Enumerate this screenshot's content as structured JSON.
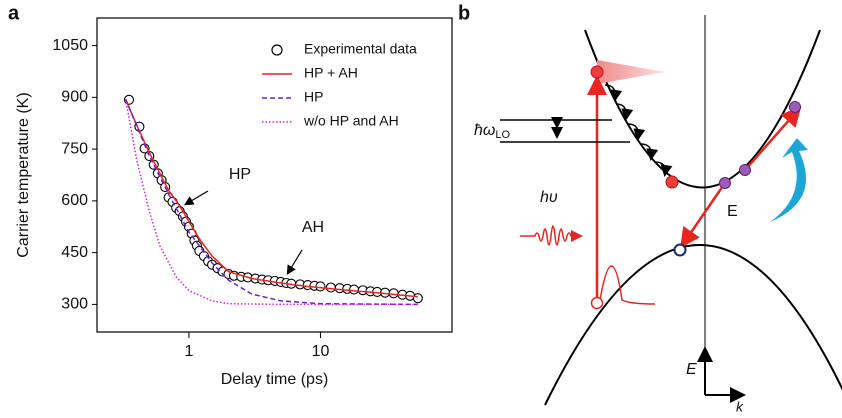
{
  "chart_data": {
    "type": "line",
    "panel_label": "a",
    "x_label": "Delay time (ps)",
    "y_label": "Carrier temperature (K)",
    "xscale": "log",
    "xlim": [
      0.2,
      100
    ],
    "ylim": [
      220,
      1130
    ],
    "xticks": [
      1,
      10
    ],
    "yticks": [
      300,
      450,
      600,
      750,
      900,
      1050
    ],
    "legend": "upper right",
    "series": [
      {
        "name": "Experimental data",
        "color": "#000000",
        "style": "markers",
        "x": [
          0.35,
          0.42,
          0.46,
          0.5,
          0.54,
          0.58,
          0.62,
          0.66,
          0.7,
          0.75,
          0.8,
          0.85,
          0.9,
          0.95,
          1.0,
          1.05,
          1.1,
          1.15,
          1.2,
          1.3,
          1.4,
          1.5,
          1.65,
          1.8,
          2.0,
          2.2,
          2.5,
          2.8,
          3.2,
          3.6,
          4.0,
          4.5,
          5.0,
          5.5,
          6.0,
          7.0,
          8.0,
          9.0,
          10,
          12,
          14,
          16,
          18,
          21,
          24,
          27,
          31,
          36,
          42,
          48,
          55
        ],
        "values": [
          893,
          815,
          752,
          730,
          705,
          680,
          660,
          640,
          610,
          597,
          580,
          570,
          555,
          540,
          525,
          505,
          485,
          470,
          455,
          440,
          425,
          415,
          405,
          395,
          388,
          383,
          380,
          378,
          375,
          372,
          370,
          368,
          365,
          362,
          360,
          358,
          356,
          354,
          352,
          349,
          347,
          345,
          343,
          341,
          338,
          336,
          334,
          332,
          328,
          325,
          318
        ]
      },
      {
        "name": "HP + AH",
        "color": "#e8251f",
        "style": "solid",
        "x": [
          0.33,
          0.4,
          0.5,
          0.6,
          0.7,
          0.8,
          0.9,
          1.0,
          1.2,
          1.5,
          2,
          3,
          5,
          8,
          15,
          30,
          55
        ],
        "values": [
          895,
          820,
          740,
          680,
          630,
          600,
          570,
          540,
          490,
          440,
          395,
          375,
          362,
          352,
          342,
          332,
          322
        ]
      },
      {
        "name": "HP",
        "color": "#6a1fd6",
        "style": "dashed",
        "x": [
          0.33,
          0.5,
          0.7,
          1,
          1.5,
          2,
          3,
          5,
          10,
          55
        ],
        "values": [
          895,
          730,
          620,
          510,
          420,
          370,
          330,
          310,
          302,
          300
        ]
      },
      {
        "name": "w/o HP and AH",
        "color": "#d41ee0",
        "style": "dotted",
        "x": [
          0.33,
          0.4,
          0.5,
          0.6,
          0.8,
          1,
          1.5,
          2,
          5,
          55
        ],
        "values": [
          895,
          720,
          570,
          470,
          380,
          340,
          310,
          302,
          300,
          300
        ]
      }
    ],
    "annotations": [
      {
        "text": "HP"
      },
      {
        "text": "AH"
      }
    ]
  },
  "diagram": {
    "panel_label": "b",
    "phonon_label": "ħω",
    "phonon_subscript": "LO",
    "photon_label": "hυ",
    "field_label": "E",
    "energy_axis_label": "E",
    "momentum_axis_label": "k"
  }
}
